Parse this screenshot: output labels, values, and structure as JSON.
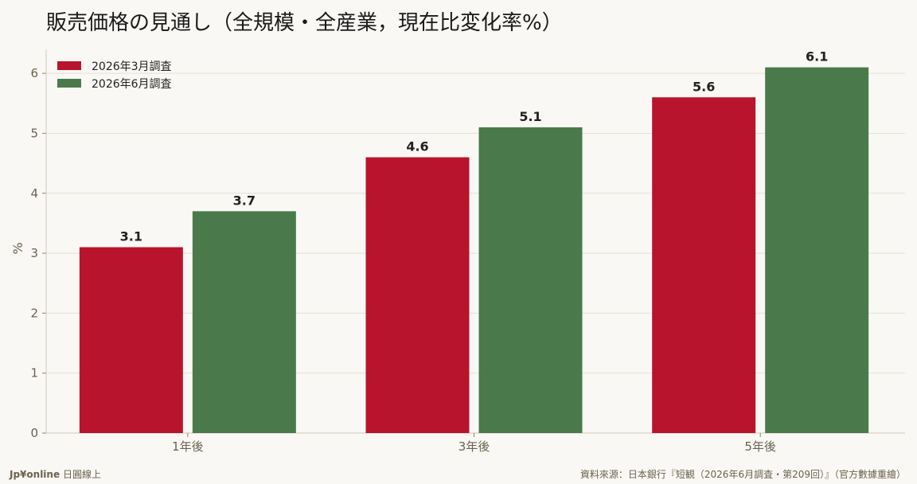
{
  "chart_data": {
    "type": "bar",
    "title": "販売価格の見通し（全規模・全産業，現在比変化率%）",
    "categories": [
      "1年後",
      "3年後",
      "5年後"
    ],
    "series": [
      {
        "name": "2026年3月調査",
        "values": [
          3.1,
          4.6,
          5.6
        ],
        "color": "#b8142d"
      },
      {
        "name": "2026年6月調査",
        "values": [
          3.7,
          5.1,
          6.1
        ],
        "color": "#4a7a4c"
      }
    ],
    "ylabel": "%",
    "xlabel": "",
    "ylim": [
      0,
      6.4
    ],
    "yticks": [
      "0",
      "1",
      "2",
      "3",
      "4",
      "5",
      "6"
    ],
    "data_labels": [
      [
        "3.1",
        "4.6",
        "5.6"
      ],
      [
        "3.7",
        "5.1",
        "6.1"
      ]
    ],
    "grid": true,
    "legend_position": "top-left"
  },
  "footer": {
    "brand": "Jp¥online",
    "brand_suffix": "日圓線上",
    "source": "資料來源：日本銀行『短観（2026年6月調査・第209回）』（官方數據重繪）"
  }
}
